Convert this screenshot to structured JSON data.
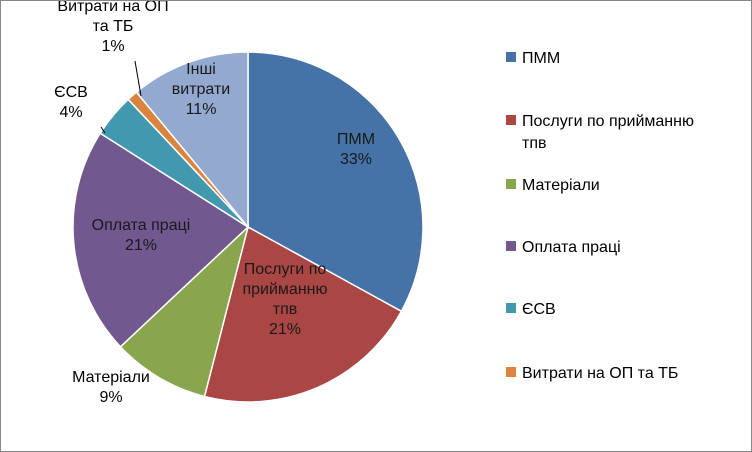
{
  "chart_data": {
    "type": "pie",
    "title": "",
    "slices": [
      {
        "name": "ПММ",
        "value": 33,
        "color": "#4572A7",
        "label": [
          "ПММ",
          "33%"
        ]
      },
      {
        "name": "Послуги по прийманню тпв",
        "value": 21,
        "color": "#AA4643",
        "label": [
          "Послуги по",
          "прийманню",
          "тпв",
          "21%"
        ]
      },
      {
        "name": "Матеріали",
        "value": 9,
        "color": "#89A54E",
        "label": [
          "Матеріали",
          "9%"
        ]
      },
      {
        "name": "Оплата праці",
        "value": 21,
        "color": "#71588F",
        "label": [
          "Оплата праці",
          "21%"
        ]
      },
      {
        "name": "ЄСВ",
        "value": 4,
        "color": "#4198AF",
        "label": [
          "ЄСВ",
          "4%"
        ]
      },
      {
        "name": "Витрати на ОП та ТБ",
        "value": 1,
        "color": "#DB843D",
        "label": [
          "Витрати на ОП",
          "та ТБ",
          "1%"
        ]
      },
      {
        "name": "Інші витрати",
        "value": 11,
        "color": "#93A9CF",
        "label": [
          "Інші",
          "витрати",
          "11%"
        ]
      }
    ],
    "legend": {
      "placement": "right",
      "entries": [
        {
          "lines": [
            "ПММ"
          ],
          "color": "#4572A7"
        },
        {
          "lines": [
            "Послуги по прийманню",
            "тпв"
          ],
          "color": "#AA4643"
        },
        {
          "lines": [
            "Матеріали"
          ],
          "color": "#89A54E"
        },
        {
          "lines": [
            "Оплата праці"
          ],
          "color": "#71588F"
        },
        {
          "lines": [
            "ЄСВ"
          ],
          "color": "#4198AF"
        },
        {
          "lines": [
            "Витрати на ОП та ТБ"
          ],
          "color": "#DB843D"
        }
      ]
    }
  }
}
